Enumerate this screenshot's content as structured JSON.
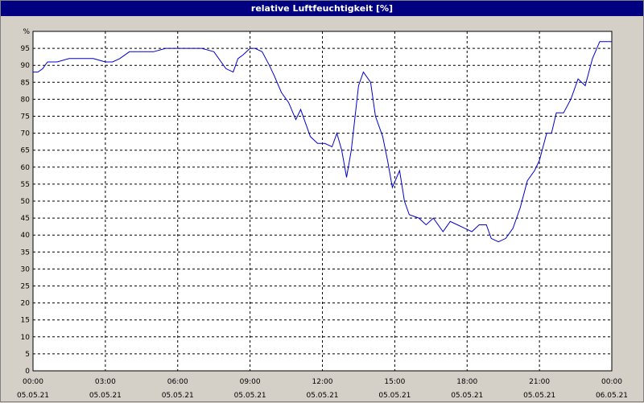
{
  "title": "relative Luftfeuchtigkeit [%]",
  "chart_data": {
    "type": "line",
    "title": "relative Luftfeuchtigkeit [%]",
    "ylabel_unit": "%",
    "ylim": [
      0,
      100
    ],
    "xlim_hours": [
      0,
      24
    ],
    "y_ticks": [
      "0",
      "5",
      "10",
      "15",
      "20",
      "25",
      "30",
      "35",
      "40",
      "45",
      "50",
      "55",
      "60",
      "65",
      "70",
      "75",
      "80",
      "85",
      "90",
      "95",
      "%"
    ],
    "x_ticks": [
      {
        "time": "00:00",
        "date": "05.05.21"
      },
      {
        "time": "03:00",
        "date": "05.05.21"
      },
      {
        "time": "06:00",
        "date": "05.05.21"
      },
      {
        "time": "09:00",
        "date": "05.05.21"
      },
      {
        "time": "12:00",
        "date": "05.05.21"
      },
      {
        "time": "15:00",
        "date": "05.05.21"
      },
      {
        "time": "18:00",
        "date": "05.05.21"
      },
      {
        "time": "21:00",
        "date": "05.05.21"
      },
      {
        "time": "00:00",
        "date": "06.05.21"
      }
    ],
    "grid": true,
    "line_color": "#0000cc",
    "series": [
      {
        "x": [
          0,
          0.2,
          0.4,
          0.6,
          1.0,
          1.5,
          2.0,
          2.5,
          3.0,
          3.3,
          3.6,
          4.0,
          4.5,
          5.0,
          5.5,
          6.0,
          6.5,
          7.0,
          7.5,
          8.0,
          8.3,
          8.5,
          8.7,
          9.0,
          9.2,
          9.5,
          9.8,
          10.0,
          10.3,
          10.6,
          10.9,
          11.1,
          11.3,
          11.5,
          11.8,
          12.1,
          12.4,
          12.6,
          12.8,
          13.0,
          13.2,
          13.5,
          13.7,
          14.0,
          14.2,
          14.5,
          14.7,
          14.9,
          15.2,
          15.4,
          15.6,
          16.0,
          16.3,
          16.6,
          17.0,
          17.3,
          17.6,
          17.9,
          18.2,
          18.5,
          18.8,
          19.0,
          19.3,
          19.6,
          19.9,
          20.2,
          20.5,
          20.8,
          21.0,
          21.3,
          21.5,
          21.7,
          22.0,
          22.3,
          22.6,
          22.9,
          23.2,
          23.5,
          24.0
        ],
        "y": [
          88,
          88,
          89,
          91,
          91,
          92,
          92,
          92,
          91,
          91,
          92,
          94,
          94,
          94,
          95,
          95,
          95,
          95,
          94,
          89,
          88,
          92,
          93,
          95,
          95,
          94,
          90,
          87,
          82,
          79,
          74,
          77,
          73,
          69,
          67,
          67,
          66,
          70,
          65,
          57,
          65,
          84,
          88,
          85,
          75,
          69,
          62,
          54,
          59,
          50,
          46,
          45,
          43,
          45,
          41,
          44,
          43,
          42,
          41,
          43,
          43,
          39,
          38,
          39,
          42,
          48,
          56,
          59,
          62,
          70,
          70,
          76,
          76,
          80,
          86,
          84,
          92,
          97,
          97
        ]
      }
    ]
  }
}
